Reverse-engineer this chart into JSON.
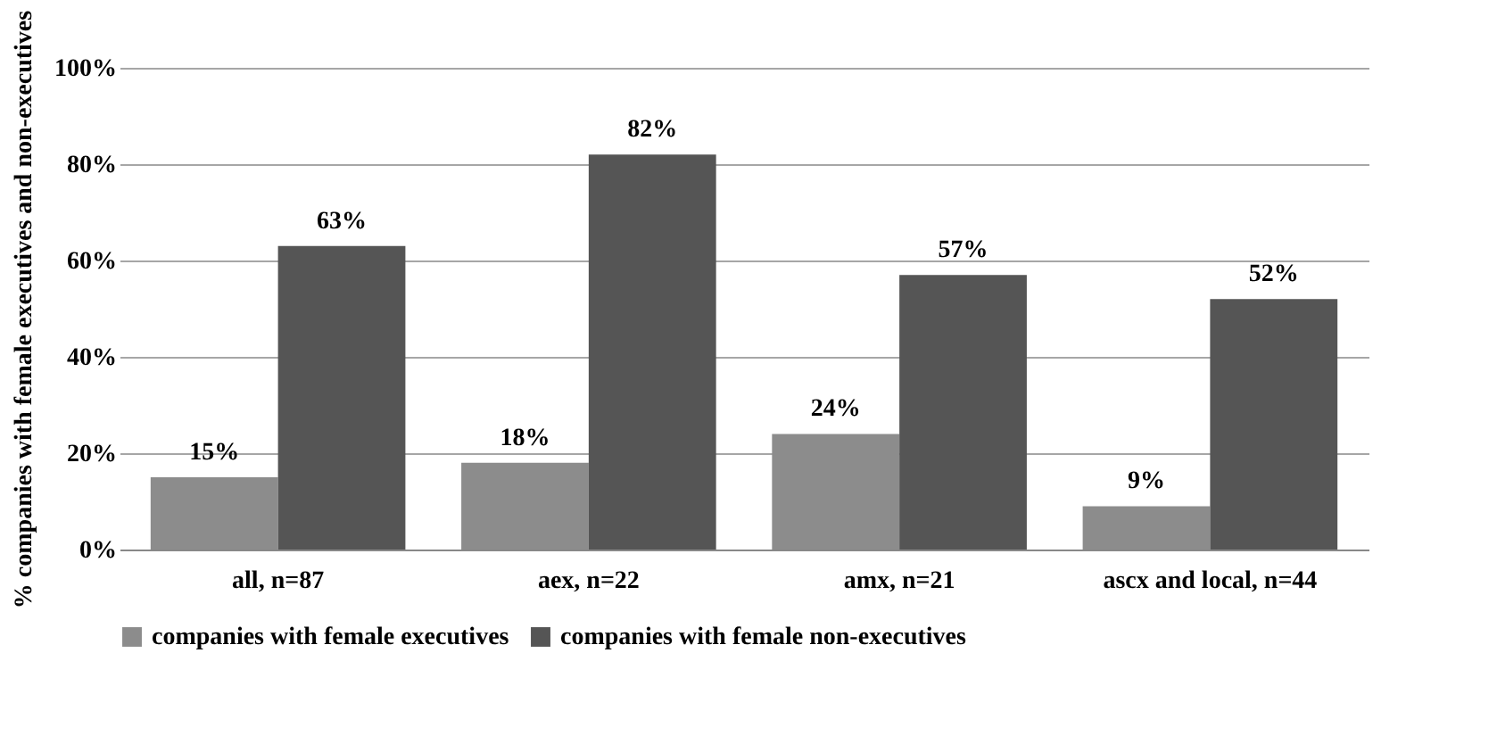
{
  "chart_data": {
    "type": "bar",
    "ylabel": "% companies with female executives and non-executives",
    "categories": [
      "all, n=87",
      "aex, n=22",
      "amx, n=21",
      "ascx and local, n=44"
    ],
    "series": [
      {
        "name": "companies with female executives",
        "color": "#8c8c8c",
        "values": [
          15,
          18,
          24,
          9
        ],
        "value_labels": [
          "15%",
          "18%",
          "24%",
          "9%"
        ]
      },
      {
        "name": "companies with female non-executives",
        "color": "#555555",
        "values": [
          63,
          82,
          57,
          52
        ],
        "value_labels": [
          "63%",
          "82%",
          "57%",
          "52%"
        ]
      }
    ],
    "ylim": [
      0,
      100
    ],
    "yticks": [
      {
        "value": 0,
        "label": "0%"
      },
      {
        "value": 20,
        "label": "20%"
      },
      {
        "value": 40,
        "label": "40%"
      },
      {
        "value": 60,
        "label": "60%"
      },
      {
        "value": 80,
        "label": "80%"
      },
      {
        "value": 100,
        "label": "100%"
      }
    ],
    "grid": "y",
    "legend": "bottom"
  }
}
